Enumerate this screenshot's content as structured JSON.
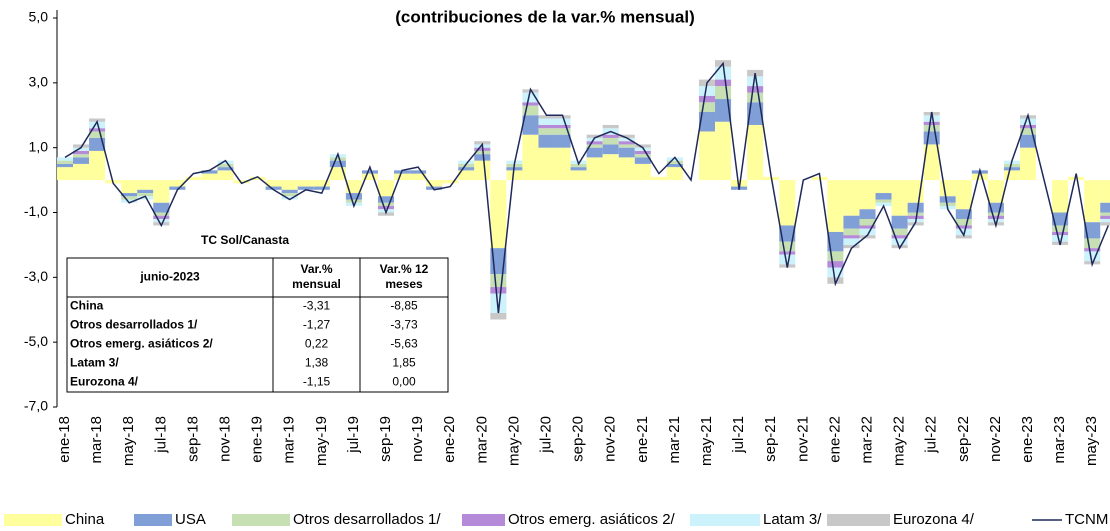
{
  "chart_data": {
    "type": "bar",
    "stacked": true,
    "title": "(contribuciones de la var.% mensual)",
    "categories": [
      "ene-18",
      null,
      "mar-18",
      null,
      "may-18",
      null,
      "jul-18",
      null,
      "sep-18",
      null,
      "nov-18",
      null,
      "ene-19",
      null,
      "mar-19",
      null,
      "may-19",
      null,
      "jul-19",
      null,
      "sep-19",
      null,
      "nov-19",
      null,
      "ene-20",
      null,
      "mar-20",
      null,
      "may-20",
      null,
      "jul-20",
      null,
      "sep-20",
      null,
      "nov-20",
      null,
      "ene-21",
      null,
      "mar-21",
      null,
      "may-21",
      null,
      "jul-21",
      null,
      "sep-21",
      null,
      "nov-21",
      null,
      "ene-22",
      null,
      "mar-22",
      null,
      "may-22",
      null,
      "jul-22",
      null,
      "sep-22",
      null,
      "nov-22",
      null,
      "ene-23",
      null,
      "mar-23",
      null,
      "may-23",
      null
    ],
    "ylim": [
      -7,
      5
    ],
    "yticks": [
      {
        "value": 5,
        "label": "5,0"
      },
      {
        "value": 3,
        "label": "3,0"
      },
      {
        "value": 1,
        "label": "1,0"
      },
      {
        "value": -1,
        "label": "-1,0"
      },
      {
        "value": -3,
        "label": "-3,0"
      },
      {
        "value": -5,
        "label": "-5,0"
      },
      {
        "value": -7,
        "label": "-7,0"
      }
    ],
    "series": [
      {
        "name": "China",
        "color": "#ffff9e",
        "values": [
          0.4,
          0.5,
          0.9,
          -0.1,
          -0.4,
          -0.3,
          -0.7,
          -0.2,
          0.1,
          0.2,
          0.3,
          -0.1,
          0.1,
          -0.2,
          -0.3,
          -0.2,
          -0.2,
          0.4,
          -0.4,
          0.2,
          -0.5,
          0.2,
          0.2,
          -0.2,
          -0.1,
          0.3,
          0.6,
          -2.1,
          0.3,
          1.4,
          1.0,
          1.0,
          0.3,
          0.7,
          0.8,
          0.7,
          0.5,
          0.1,
          0.4,
          0.0,
          1.5,
          1.8,
          -0.2,
          1.7,
          0.1,
          -1.4,
          0.0,
          0.1,
          -1.6,
          -1.1,
          -0.9,
          -0.4,
          -1.1,
          -0.7,
          1.1,
          -0.5,
          -0.9,
          0.2,
          -0.7,
          0.3,
          1.0,
          0.0,
          -1.0,
          0.1,
          -1.3,
          -0.7
        ]
      },
      {
        "name": "USA",
        "color": "#7f9fd6",
        "values": [
          0.1,
          0.2,
          0.4,
          0.0,
          -0.1,
          -0.1,
          -0.3,
          -0.1,
          0.0,
          0.1,
          0.1,
          0.0,
          0.0,
          -0.1,
          -0.1,
          -0.1,
          -0.1,
          0.2,
          -0.2,
          0.1,
          -0.2,
          0.1,
          0.1,
          -0.1,
          0.0,
          0.1,
          0.2,
          -0.8,
          0.1,
          0.6,
          0.4,
          0.4,
          0.1,
          0.3,
          0.3,
          0.3,
          0.2,
          0.0,
          0.1,
          0.0,
          0.6,
          0.7,
          -0.1,
          0.7,
          0.0,
          -0.5,
          0.0,
          0.0,
          -0.6,
          -0.4,
          -0.3,
          -0.2,
          -0.4,
          -0.3,
          0.4,
          -0.2,
          -0.3,
          0.1,
          -0.3,
          0.1,
          0.4,
          0.0,
          -0.4,
          0.0,
          -0.5,
          -0.3
        ]
      },
      {
        "name": "Otros desarrollados 1/",
        "color": "#c6e0b4",
        "values": [
          0.1,
          0.1,
          0.2,
          0.0,
          -0.1,
          -0.1,
          -0.1,
          0.0,
          0.0,
          0.0,
          0.1,
          0.0,
          0.0,
          0.0,
          -0.1,
          0.0,
          0.0,
          0.1,
          -0.1,
          0.0,
          -0.1,
          0.0,
          0.0,
          0.0,
          0.0,
          0.1,
          0.1,
          -0.4,
          0.1,
          0.3,
          0.2,
          0.2,
          0.1,
          0.1,
          0.2,
          0.1,
          0.1,
          0.0,
          0.1,
          0.0,
          0.3,
          0.4,
          0.0,
          0.3,
          0.0,
          -0.3,
          0.0,
          0.0,
          -0.3,
          -0.2,
          -0.2,
          -0.1,
          -0.2,
          -0.1,
          0.2,
          -0.1,
          -0.2,
          0.0,
          -0.1,
          0.1,
          0.2,
          0.0,
          -0.2,
          0.0,
          -0.3,
          -0.1
        ]
      },
      {
        "name": "Otros emerg. asiáticos 2/",
        "color": "#b58ad8",
        "values": [
          0.0,
          0.1,
          0.1,
          0.0,
          0.0,
          0.0,
          -0.1,
          0.0,
          0.0,
          0.0,
          0.0,
          0.0,
          0.0,
          0.0,
          0.0,
          0.0,
          0.0,
          0.0,
          0.0,
          0.0,
          -0.1,
          0.0,
          0.0,
          0.0,
          0.0,
          0.0,
          0.1,
          -0.2,
          0.0,
          0.1,
          0.1,
          0.1,
          0.0,
          0.1,
          0.1,
          0.1,
          0.1,
          0.0,
          0.0,
          0.0,
          0.2,
          0.2,
          0.0,
          0.2,
          0.0,
          -0.1,
          0.0,
          0.0,
          -0.2,
          -0.1,
          -0.1,
          0.0,
          -0.1,
          -0.1,
          0.1,
          0.0,
          -0.1,
          0.0,
          -0.1,
          0.0,
          0.1,
          0.0,
          -0.1,
          0.0,
          -0.1,
          -0.1
        ]
      },
      {
        "name": "Latam 3/",
        "color": "#ccf2fb",
        "values": [
          0.1,
          0.1,
          0.2,
          0.0,
          -0.1,
          -0.1,
          -0.1,
          0.0,
          0.0,
          0.0,
          0.1,
          0.0,
          0.0,
          0.0,
          -0.1,
          0.0,
          0.0,
          0.1,
          -0.1,
          0.0,
          -0.1,
          0.0,
          0.0,
          0.0,
          0.0,
          0.1,
          0.1,
          -0.6,
          0.1,
          0.3,
          0.2,
          0.2,
          0.1,
          0.1,
          0.2,
          0.1,
          0.1,
          0.0,
          0.1,
          0.0,
          0.3,
          0.4,
          0.0,
          0.3,
          0.0,
          -0.3,
          0.0,
          0.0,
          -0.3,
          -0.2,
          -0.2,
          -0.1,
          -0.2,
          -0.1,
          0.2,
          -0.1,
          -0.2,
          0.0,
          -0.1,
          0.1,
          0.2,
          0.0,
          -0.2,
          0.0,
          -0.3,
          -0.1
        ]
      },
      {
        "name": "Eurozona 4/",
        "color": "#c8c8c8",
        "values": [
          0.0,
          0.1,
          0.1,
          0.0,
          0.0,
          0.0,
          -0.1,
          0.0,
          0.0,
          0.0,
          0.0,
          0.0,
          0.0,
          0.0,
          0.0,
          0.0,
          0.0,
          0.0,
          0.0,
          0.0,
          -0.1,
          0.0,
          0.0,
          0.0,
          0.0,
          0.0,
          0.1,
          -0.2,
          0.0,
          0.1,
          0.1,
          0.1,
          0.0,
          0.1,
          0.1,
          0.1,
          0.1,
          0.0,
          0.0,
          0.0,
          0.2,
          0.2,
          0.0,
          0.2,
          0.0,
          -0.1,
          0.0,
          0.0,
          -0.2,
          -0.1,
          -0.1,
          0.0,
          -0.1,
          -0.1,
          0.1,
          0.0,
          -0.1,
          0.0,
          -0.1,
          0.0,
          0.1,
          0.0,
          -0.1,
          0.0,
          -0.1,
          -0.1
        ]
      },
      {
        "name": "TCNM",
        "color": "#1f2a5a",
        "type": "line",
        "values": [
          0.7,
          1.0,
          1.8,
          -0.1,
          -0.7,
          -0.5,
          -1.4,
          -0.3,
          0.2,
          0.3,
          0.6,
          -0.1,
          0.1,
          -0.3,
          -0.6,
          -0.3,
          -0.4,
          0.8,
          -0.8,
          0.4,
          -1.0,
          0.3,
          0.4,
          -0.3,
          -0.2,
          0.5,
          1.1,
          -4.1,
          0.5,
          2.8,
          2.0,
          2.0,
          0.5,
          1.3,
          1.5,
          1.3,
          1.0,
          0.2,
          0.7,
          0.0,
          3.0,
          3.6,
          -0.3,
          3.3,
          0.1,
          -2.7,
          0.0,
          0.2,
          -3.2,
          -2.1,
          -1.7,
          -0.8,
          -2.1,
          -1.3,
          2.1,
          -0.9,
          -1.7,
          0.3,
          -1.4,
          0.6,
          2.0,
          0.0,
          -2.0,
          0.2,
          -2.6,
          -1.4
        ]
      }
    ],
    "table": {
      "title": "TC Sol/Canasta",
      "headers": [
        "junio-2023",
        "Var.% mensual",
        "Var.% 12 meses"
      ],
      "rows": [
        [
          "China",
          "-3,31",
          "-8,85"
        ],
        [
          "Otros desarrollados 1/",
          "-1,27",
          "-3,73"
        ],
        [
          "Otros emerg. asiáticos 2/",
          "0,22",
          "-5,63"
        ],
        [
          "Latam 3/",
          "1,38",
          "1,85"
        ],
        [
          "Eurozona 4/",
          "-1,15",
          "0,00"
        ]
      ]
    }
  }
}
